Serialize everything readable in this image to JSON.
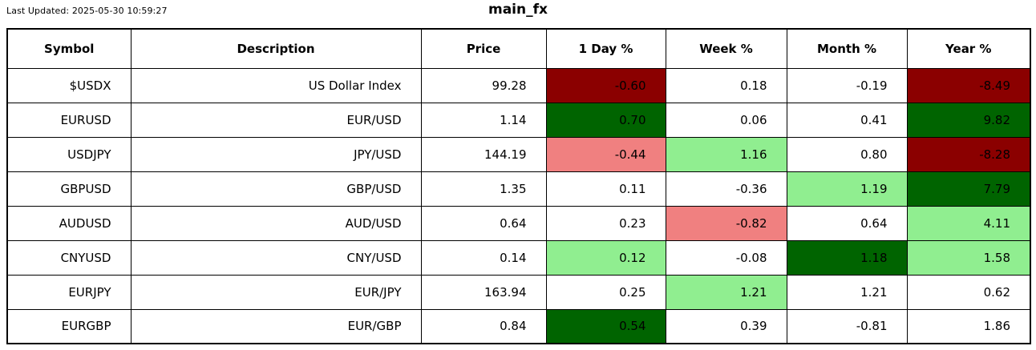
{
  "meta": {
    "last_updated": "Last Updated: 2025-05-30 10:59:27",
    "title": "main_fx"
  },
  "colors": {
    "darkred": "#8b0000",
    "darkgreen": "#006400",
    "lightgreen": "#90ee90",
    "lightcoral": "#f08080",
    "white": "#ffffff"
  },
  "table": {
    "columns": [
      "Symbol",
      "Description",
      "Price",
      "1 Day %",
      "Week %",
      "Month %",
      "Year %"
    ],
    "rows": [
      {
        "symbol": "$USDX",
        "description": "US Dollar Index",
        "price": "99.28",
        "pct": [
          {
            "value": "-0.60",
            "bg": "darkred"
          },
          {
            "value": "0.18",
            "bg": "white"
          },
          {
            "value": "-0.19",
            "bg": "white"
          },
          {
            "value": "-8.49",
            "bg": "darkred"
          }
        ]
      },
      {
        "symbol": "EURUSD",
        "description": "EUR/USD",
        "price": "1.14",
        "pct": [
          {
            "value": "0.70",
            "bg": "darkgreen"
          },
          {
            "value": "0.06",
            "bg": "white"
          },
          {
            "value": "0.41",
            "bg": "white"
          },
          {
            "value": "9.82",
            "bg": "darkgreen"
          }
        ]
      },
      {
        "symbol": "USDJPY",
        "description": "JPY/USD",
        "price": "144.19",
        "pct": [
          {
            "value": "-0.44",
            "bg": "lightcoral"
          },
          {
            "value": "1.16",
            "bg": "lightgreen"
          },
          {
            "value": "0.80",
            "bg": "white"
          },
          {
            "value": "-8.28",
            "bg": "darkred"
          }
        ]
      },
      {
        "symbol": "GBPUSD",
        "description": "GBP/USD",
        "price": "1.35",
        "pct": [
          {
            "value": "0.11",
            "bg": "white"
          },
          {
            "value": "-0.36",
            "bg": "white"
          },
          {
            "value": "1.19",
            "bg": "lightgreen"
          },
          {
            "value": "7.79",
            "bg": "darkgreen"
          }
        ]
      },
      {
        "symbol": "AUDUSD",
        "description": "AUD/USD",
        "price": "0.64",
        "pct": [
          {
            "value": "0.23",
            "bg": "white"
          },
          {
            "value": "-0.82",
            "bg": "lightcoral"
          },
          {
            "value": "0.64",
            "bg": "white"
          },
          {
            "value": "4.11",
            "bg": "lightgreen"
          }
        ]
      },
      {
        "symbol": "CNYUSD",
        "description": "CNY/USD",
        "price": "0.14",
        "pct": [
          {
            "value": "0.12",
            "bg": "lightgreen"
          },
          {
            "value": "-0.08",
            "bg": "white"
          },
          {
            "value": "1.18",
            "bg": "darkgreen"
          },
          {
            "value": "1.58",
            "bg": "lightgreen"
          }
        ]
      },
      {
        "symbol": "EURJPY",
        "description": "EUR/JPY",
        "price": "163.94",
        "pct": [
          {
            "value": "0.25",
            "bg": "white"
          },
          {
            "value": "1.21",
            "bg": "lightgreen"
          },
          {
            "value": "1.21",
            "bg": "white"
          },
          {
            "value": "0.62",
            "bg": "white"
          }
        ]
      },
      {
        "symbol": "EURGBP",
        "description": "EUR/GBP",
        "price": "0.84",
        "pct": [
          {
            "value": "0.54",
            "bg": "darkgreen"
          },
          {
            "value": "0.39",
            "bg": "white"
          },
          {
            "value": "-0.81",
            "bg": "white"
          },
          {
            "value": "1.86",
            "bg": "white"
          }
        ]
      }
    ]
  }
}
